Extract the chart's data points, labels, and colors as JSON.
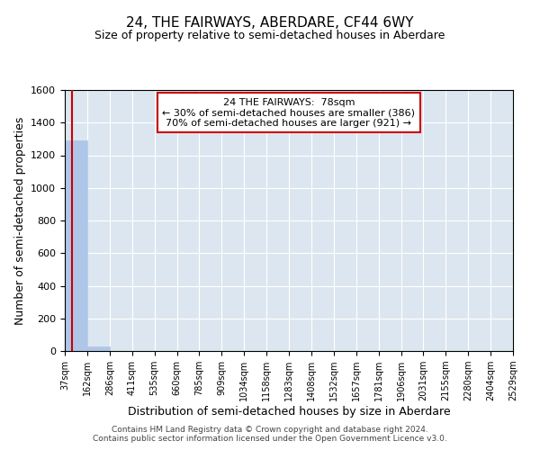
{
  "title": "24, THE FAIRWAYS, ABERDARE, CF44 6WY",
  "subtitle": "Size of property relative to semi-detached houses in Aberdare",
  "xlabel": "Distribution of semi-detached houses by size in Aberdare",
  "ylabel": "Number of semi-detached properties",
  "footer_line1": "Contains HM Land Registry data © Crown copyright and database right 2024.",
  "footer_line2": "Contains public sector information licensed under the Open Government Licence v3.0.",
  "annotation_line1": "24 THE FAIRWAYS:  78sqm",
  "annotation_line2": "← 30% of semi-detached houses are smaller (386)",
  "annotation_line3": "70% of semi-detached houses are larger (921) →",
  "subject_size": 78,
  "bar_edges": [
    37,
    162,
    286,
    411,
    535,
    660,
    785,
    909,
    1034,
    1158,
    1283,
    1408,
    1532,
    1657,
    1781,
    1906,
    2031,
    2155,
    2280,
    2404,
    2529
  ],
  "bar_heights": [
    1290,
    25,
    0,
    0,
    0,
    0,
    0,
    0,
    0,
    0,
    0,
    0,
    0,
    0,
    0,
    0,
    0,
    0,
    0,
    0
  ],
  "bar_color": "#aec6e8",
  "bar_edge_color": "#aec6e8",
  "subject_line_color": "#cc0000",
  "annotation_box_color": "#cc0000",
  "background_color": "#dce6f0",
  "ylim": [
    0,
    1600
  ],
  "grid_color": "#ffffff",
  "tick_label_size": 7,
  "ytick_label_size": 8,
  "axis_label_size": 9,
  "title_fontsize": 11,
  "subtitle_fontsize": 9,
  "footer_fontsize": 6.5
}
